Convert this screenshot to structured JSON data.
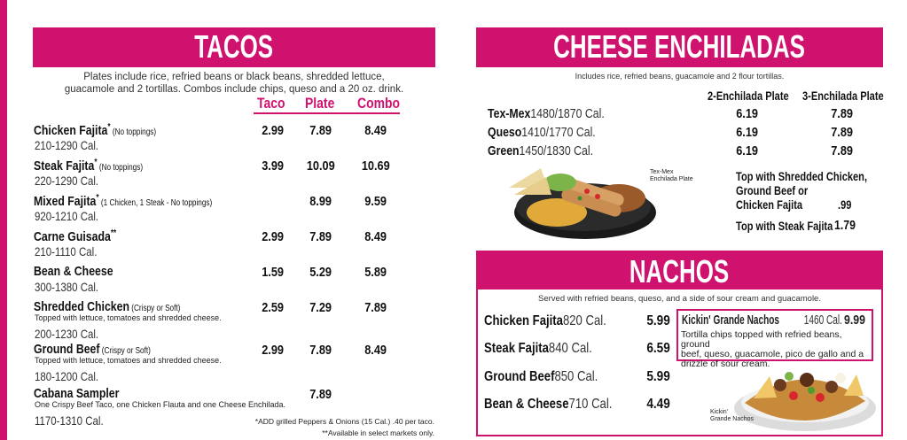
{
  "tacos": {
    "title": "TACOS",
    "intro_line1": "Plates include rice, refried beans or  black beans, shredded lettuce,",
    "intro_line2": "guacamole and 2 tortillas. Combos include chips, queso and a 20 oz. drink.",
    "columns": [
      "Taco",
      "Plate",
      "Combo"
    ],
    "items": [
      {
        "name": "Chicken Fajita",
        "mark": "*",
        "note": "(No toppings)",
        "cal": "210-1290 Cal.",
        "taco": "2.99",
        "plate": "7.89",
        "combo": "8.49"
      },
      {
        "name": "Steak Fajita",
        "mark": "*",
        "note": "(No toppings)",
        "cal": "220-1290 Cal.",
        "taco": "3.99",
        "plate": "10.09",
        "combo": "10.69"
      },
      {
        "name": "Mixed Fajita",
        "mark": "*",
        "note": "(1 Chicken, 1 Steak - No toppings)",
        "cal": "920-1210 Cal.",
        "taco": "",
        "plate": "8.99",
        "combo": "9.59"
      },
      {
        "name": "Carne Guisada",
        "mark": "**",
        "note": "",
        "cal": "210-1110 Cal.",
        "taco": "2.99",
        "plate": "7.89",
        "combo": "8.49"
      },
      {
        "name": "Bean & Cheese",
        "mark": "",
        "note": "",
        "cal": "300-1380 Cal.",
        "taco": "1.59",
        "plate": "5.29",
        "combo": "5.89"
      },
      {
        "name": "Shredded Chicken",
        "mark": "",
        "note": "(Crispy or Soft)",
        "desc": "Topped with lettuce, tomatoes and shredded cheese.",
        "cal": "200-1230 Cal.",
        "taco": "2.59",
        "plate": "7.29",
        "combo": "7.89"
      },
      {
        "name": "Ground Beef",
        "mark": "",
        "note": "(Crispy or Soft)",
        "desc": "Topped with lettuce, tomatoes and shredded cheese.",
        "cal": "180-1200 Cal.",
        "taco": "2.99",
        "plate": "7.89",
        "combo": "8.49"
      },
      {
        "name": "Cabana Sampler",
        "mark": "",
        "note": "",
        "desc": "One Crispy Beef Taco, one Chicken Flauta and one Cheese Enchilada.",
        "cal": "1170-1310 Cal.",
        "taco": "",
        "plate": "7.89",
        "combo": ""
      }
    ],
    "footnote1": "*ADD grilled Peppers & Onions (15 Cal.) .40 per taco.",
    "footnote2": "**Available in select markets only."
  },
  "enchiladas": {
    "title": "CHEESE ENCHILADAS",
    "intro": "Includes rice, refried beans, guacamole and 2  flour tortillas.",
    "columns": [
      "2-Enchilada Plate",
      "3-Enchilada Plate"
    ],
    "rows": [
      {
        "name": "Tex-Mex",
        "cal": "1480/1870 Cal.",
        "p2": "6.19",
        "p3": "7.89"
      },
      {
        "name": "Queso",
        "cal": "1410/1770 Cal.",
        "p2": "6.19",
        "p3": "7.89"
      },
      {
        "name": "Green",
        "cal": "1450/1830 Cal.",
        "p2": "6.19",
        "p3": "7.89"
      }
    ],
    "top1_line1": "Top with Shredded Chicken,",
    "top1_line2": "Ground Beef or",
    "top1_line3": "Chicken Fajita",
    "top1_price": ".99",
    "top2": "Top with Steak Fajita",
    "top2_price": "1.79",
    "caption1": "Tex-Mex",
    "caption2": "Enchilada Plate"
  },
  "nachos": {
    "title": "NACHOS",
    "intro": "Served with refried beans, queso, and a  side of sour cream and  guacamole.",
    "rows": [
      {
        "name": "Chicken Fajita",
        "cal": "820 Cal.",
        "price": "5.99"
      },
      {
        "name": "Steak Fajita",
        "cal": "840 Cal.",
        "price": "6.59"
      },
      {
        "name": "Ground Beef",
        "cal": "850 Cal.",
        "price": "5.99"
      },
      {
        "name": "Bean & Cheese",
        "cal": "710 Cal.",
        "price": "4.49"
      }
    ],
    "grande": {
      "name": "Kickin' Grande Nachos",
      "cal": "1460 Cal.",
      "price": "9.99",
      "desc1": "Tortilla chips topped with  refried beans, ground",
      "desc2": "beef, queso, guacamole, pico de gallo and a",
      "desc3": "drizzle of sour cream.",
      "caption1": "Kickin'",
      "caption2": "Grande Nachos"
    }
  },
  "colors": {
    "accent": "#d0126f"
  }
}
